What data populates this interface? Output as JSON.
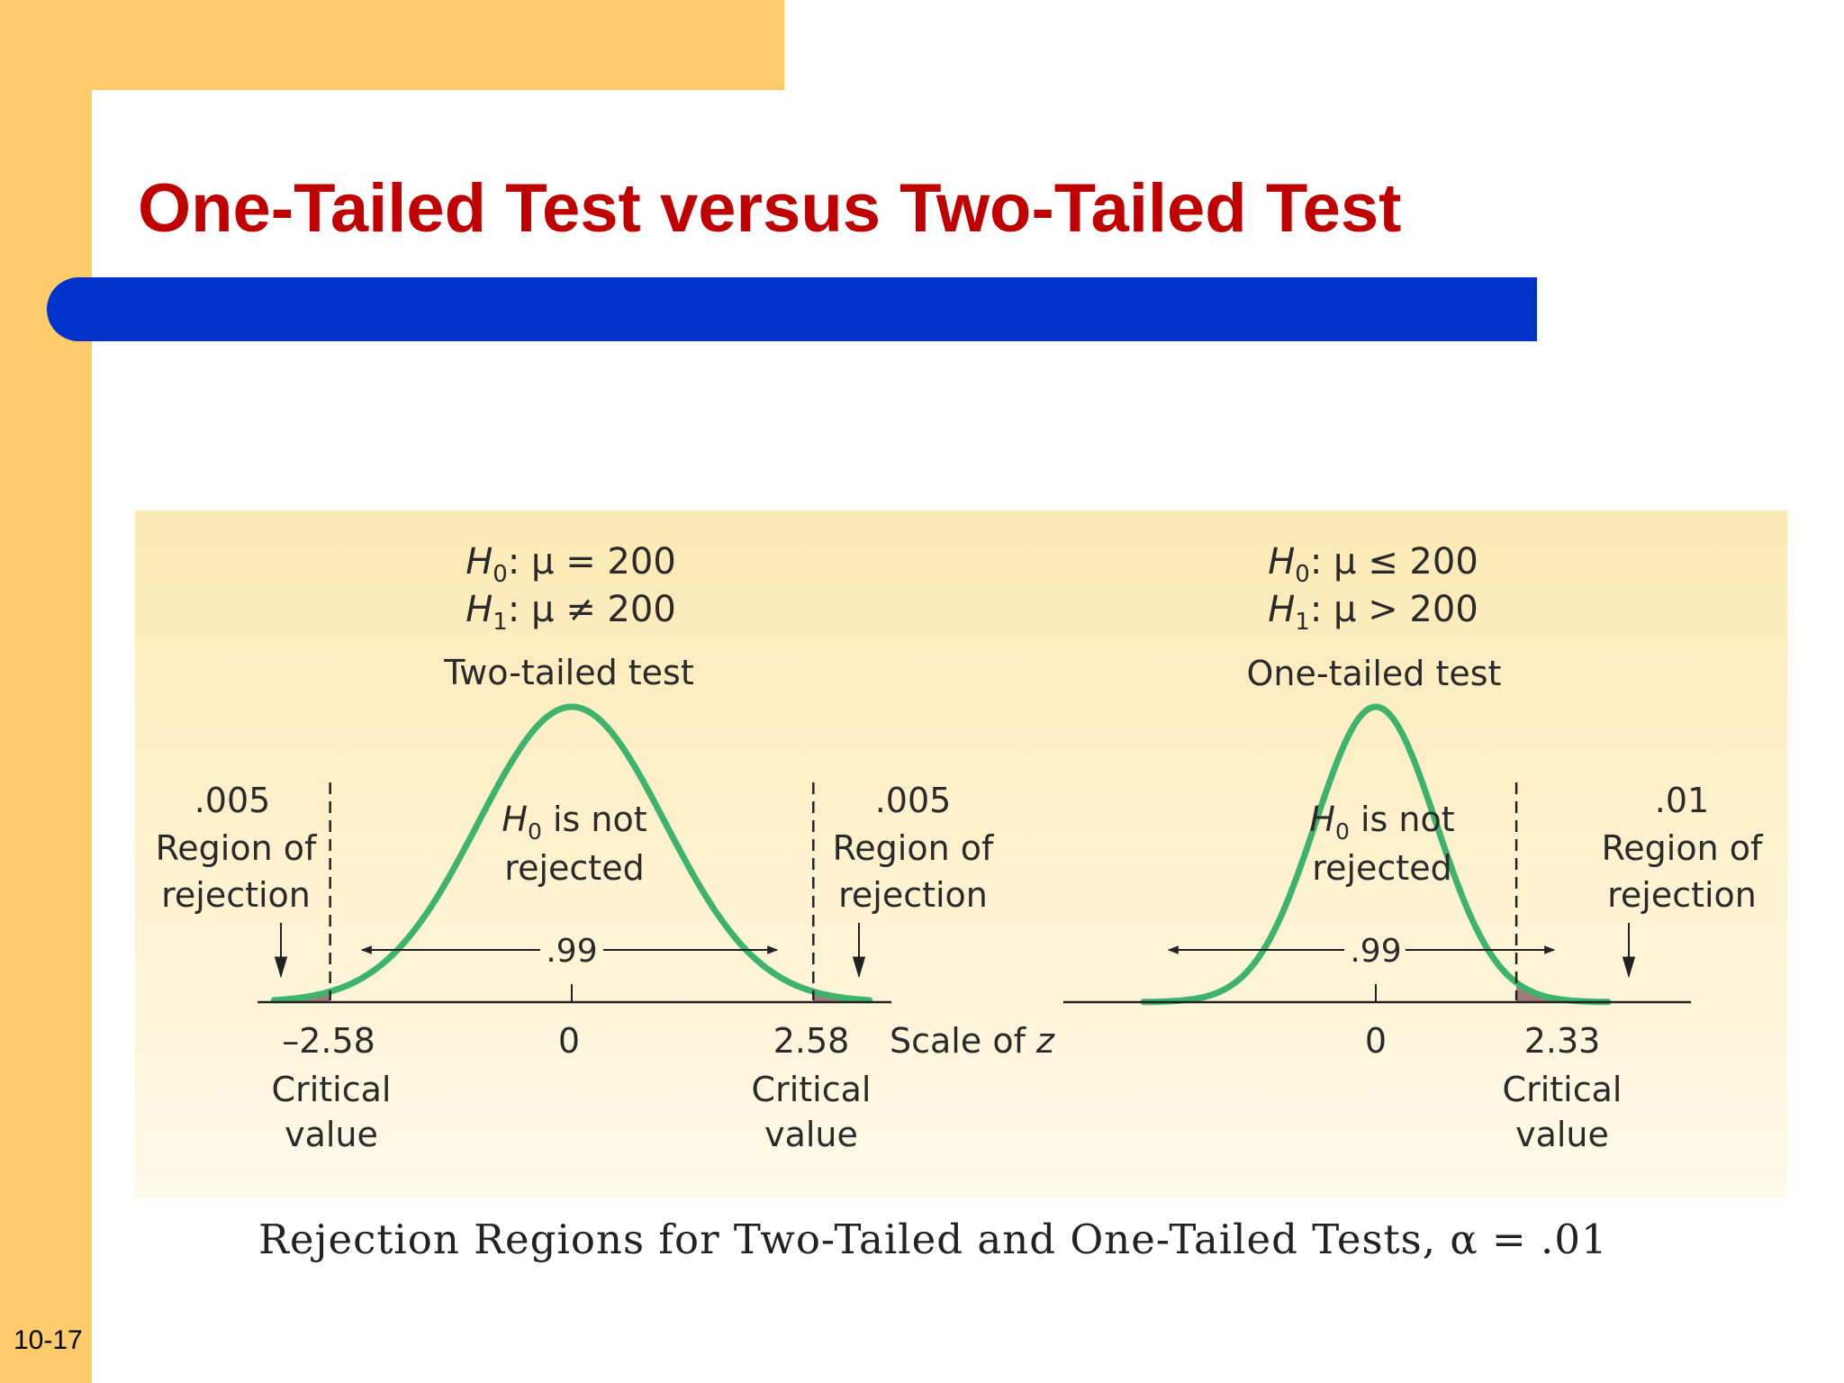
{
  "slide": {
    "title": "One-Tailed Test versus Two-Tailed Test",
    "number": "10-17",
    "caption": "Rejection Regions for Two-Tailed and One-Tailed Tests, α = .01"
  },
  "colors": {
    "sidebar": "#FECB6A",
    "title": "#C00000",
    "band": "#0033CC",
    "curve": "#3DB36B",
    "rejection_fill": "#A47A78",
    "figure_bg_top": "#FCE9B4",
    "figure_bg_bottom": "#FFF9E8"
  },
  "two_tailed": {
    "h0": {
      "var": "H",
      "sub": "0",
      "rel": ": μ = 200"
    },
    "h1": {
      "var": "H",
      "sub": "1",
      "rel": ": μ ≠ 200"
    },
    "test_label": "Two-tailed test",
    "center_label": {
      "var": "H",
      "sub": "0",
      "line1": " is not",
      "line2": "rejected"
    },
    "left_region": {
      "prob": ".005",
      "line1": "Region of",
      "line2": "rejection"
    },
    "right_region": {
      "prob": ".005",
      "line1": "Region of",
      "line2": "rejection"
    },
    "accept_prob": ".99",
    "ticks": {
      "left": "–2.58",
      "center": "0",
      "right": "2.58"
    },
    "left_critical": {
      "line1": "Critical",
      "line2": "value"
    },
    "right_critical": {
      "line1": "Critical",
      "line2": "value"
    },
    "scale_label": "Scale of ",
    "scale_var": "z",
    "critical_z": 2.58
  },
  "one_tailed": {
    "h0": {
      "var": "H",
      "sub": "0",
      "rel": ": μ ≤ 200"
    },
    "h1": {
      "var": "H",
      "sub": "1",
      "rel": ": μ  > 200"
    },
    "test_label": "One-tailed test",
    "center_label": {
      "var": "H",
      "sub": "0",
      "line1": " is not",
      "line2": "rejected"
    },
    "right_region": {
      "prob": ".01",
      "line1": "Region of",
      "line2": "rejection"
    },
    "accept_prob": ".99",
    "ticks": {
      "center": "0",
      "right": "2.33"
    },
    "right_critical": {
      "line1": "Critical",
      "line2": "value"
    },
    "critical_z": 2.33
  }
}
